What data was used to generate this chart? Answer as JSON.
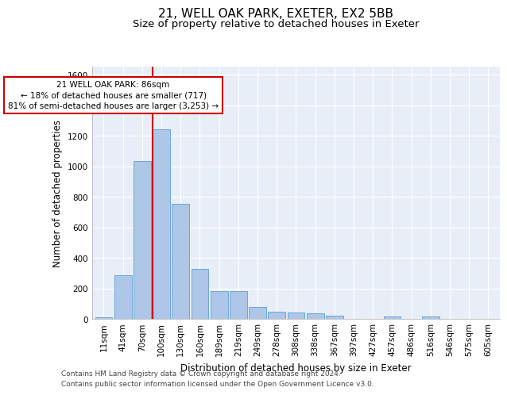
{
  "title_line1": "21, WELL OAK PARK, EXETER, EX2 5BB",
  "title_line2": "Size of property relative to detached houses in Exeter",
  "xlabel": "Distribution of detached houses by size in Exeter",
  "ylabel": "Number of detached properties",
  "bar_labels": [
    "11sqm",
    "41sqm",
    "70sqm",
    "100sqm",
    "130sqm",
    "160sqm",
    "189sqm",
    "219sqm",
    "249sqm",
    "278sqm",
    "308sqm",
    "338sqm",
    "367sqm",
    "397sqm",
    "427sqm",
    "457sqm",
    "486sqm",
    "516sqm",
    "546sqm",
    "575sqm",
    "605sqm"
  ],
  "bar_values": [
    10,
    285,
    1035,
    1240,
    755,
    330,
    180,
    180,
    80,
    45,
    40,
    35,
    20,
    0,
    0,
    15,
    0,
    15,
    0,
    0,
    0
  ],
  "bar_color": "#aec6e8",
  "bar_edgecolor": "#5a9fd4",
  "vline_color": "#cc0000",
  "annotation_text": "21 WELL OAK PARK: 86sqm\n← 18% of detached houses are smaller (717)\n81% of semi-detached houses are larger (3,253) →",
  "annotation_box_facecolor": "#ffffff",
  "annotation_box_edgecolor": "#cc0000",
  "ylim": [
    0,
    1650
  ],
  "yticks": [
    0,
    200,
    400,
    600,
    800,
    1000,
    1200,
    1400,
    1600
  ],
  "background_color": "#e8eef7",
  "grid_color": "#ffffff",
  "footer_line1": "Contains HM Land Registry data © Crown copyright and database right 2024.",
  "footer_line2": "Contains public sector information licensed under the Open Government Licence v3.0.",
  "title_fontsize": 11,
  "subtitle_fontsize": 9.5,
  "axis_label_fontsize": 8.5,
  "tick_fontsize": 7.5,
  "annotation_fontsize": 7.5,
  "footer_fontsize": 6.5,
  "vline_x": 2.53
}
